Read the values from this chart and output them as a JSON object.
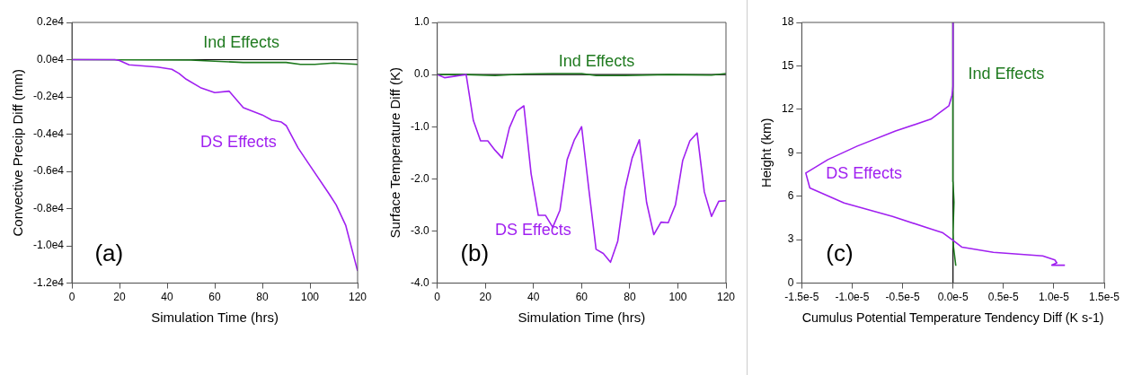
{
  "chart_data": [
    {
      "type": "line",
      "xlabel": "Simulation Time (hrs)",
      "ylabel": "Convective Precip Diff (mm)",
      "marker": "none",
      "xlim": [
        0,
        120
      ],
      "xticks": [
        0,
        20,
        40,
        60,
        80,
        100,
        120
      ],
      "ylim": [
        -12000,
        2000
      ],
      "yticks": [
        {
          "value": -12000,
          "label": "-1.2e4"
        },
        {
          "value": -10000,
          "label": "-1.0e4"
        },
        {
          "value": -8000,
          "label": "-0.8e4"
        },
        {
          "value": -6000,
          "label": "-0.6e4"
        },
        {
          "value": -4000,
          "label": "-0.4e4"
        },
        {
          "value": -2000,
          "label": "-0.2e4"
        },
        {
          "value": 0,
          "label": "0.0e4"
        },
        {
          "value": 2000,
          "label": "0.2e4"
        }
      ],
      "ref_lines": [
        {
          "axis": "y",
          "value": 0,
          "color": "#000000"
        }
      ],
      "annotations": [
        "(a)"
      ],
      "series": [
        {
          "name": "Ind Effects",
          "color": "#1f7a1f",
          "x": [
            0,
            50,
            60,
            72,
            90,
            96,
            102,
            110,
            120
          ],
          "values": [
            0,
            -20,
            -80,
            -150,
            -150,
            -250,
            -250,
            -180,
            -250
          ]
        },
        {
          "name": "DS Effects",
          "color": "#a020f0",
          "x": [
            0,
            18,
            20,
            24,
            30,
            36,
            42,
            45,
            48,
            54,
            60,
            66,
            72,
            80,
            84,
            88,
            90,
            95,
            100,
            108,
            111,
            115,
            120
          ],
          "values": [
            0,
            0,
            -50,
            -280,
            -340,
            -400,
            -520,
            -740,
            -1050,
            -1500,
            -1770,
            -1690,
            -2580,
            -2970,
            -3250,
            -3350,
            -3540,
            -4740,
            -5690,
            -7200,
            -7800,
            -8890,
            -11350
          ]
        }
      ]
    },
    {
      "type": "line",
      "xlabel": "Simulation Time (hrs)",
      "ylabel": "Surface Temperature Diff (K)",
      "marker": "none",
      "xlim": [
        0,
        120
      ],
      "xticks": [
        0,
        20,
        40,
        60,
        80,
        100,
        120
      ],
      "ylim": [
        -4,
        1
      ],
      "yticks": [
        {
          "value": -4,
          "label": "-4.0"
        },
        {
          "value": -3,
          "label": "-3.0"
        },
        {
          "value": -2,
          "label": "-2.0"
        },
        {
          "value": -1,
          "label": "-1.0"
        },
        {
          "value": 0,
          "label": "0.0"
        },
        {
          "value": 1,
          "label": "1.0"
        }
      ],
      "ref_lines": [
        {
          "axis": "y",
          "value": 0,
          "color": "#000000"
        }
      ],
      "annotations": [
        "(b)"
      ],
      "series": [
        {
          "name": "Ind Effects",
          "color": "#1f7a1f",
          "x": [
            0,
            12,
            24,
            36,
            48,
            60,
            66,
            78,
            96,
            114,
            120
          ],
          "values": [
            0,
            0,
            -0.02,
            0.01,
            0.02,
            0.02,
            -0.02,
            -0.02,
            0,
            -0.01,
            0.02
          ]
        },
        {
          "name": "DS Effects",
          "color": "#a020f0",
          "x": [
            0,
            3,
            12,
            15,
            18,
            21,
            24,
            27,
            30,
            33,
            36,
            39,
            42,
            45,
            48,
            51,
            54,
            57,
            60,
            63,
            66,
            69,
            72,
            75,
            78,
            81,
            84,
            87,
            90,
            93,
            96,
            99,
            102,
            105,
            108,
            111,
            114,
            117,
            120
          ],
          "values": [
            0,
            -0.06,
            0,
            -0.88,
            -1.27,
            -1.27,
            -1.45,
            -1.6,
            -1.02,
            -0.7,
            -0.6,
            -1.9,
            -2.7,
            -2.7,
            -2.93,
            -2.6,
            -1.63,
            -1.25,
            -1.0,
            -2.2,
            -3.35,
            -3.43,
            -3.6,
            -3.2,
            -2.2,
            -1.6,
            -1.25,
            -2.45,
            -3.07,
            -2.83,
            -2.84,
            -2.5,
            -1.65,
            -1.27,
            -1.12,
            -2.25,
            -2.72,
            -2.43,
            -2.42
          ]
        }
      ]
    },
    {
      "type": "line",
      "xlabel": "Cumulus Potential Temperature Tendency Diff (K s-1)",
      "ylabel": "Height (km)",
      "marker": "none",
      "xlim": [
        -1.5e-05,
        1.5e-05
      ],
      "xticks": [
        {
          "value": -1.5e-05,
          "label": "-1.5e-5"
        },
        {
          "value": -1e-05,
          "label": "-1.0e-5"
        },
        {
          "value": -5e-06,
          "label": "-0.5e-5"
        },
        {
          "value": 0,
          "label": "0.0e-5"
        },
        {
          "value": 5e-06,
          "label": "0.5e-5"
        },
        {
          "value": 1e-05,
          "label": "1.0e-5"
        },
        {
          "value": 1.5e-05,
          "label": "1.5e-5"
        }
      ],
      "ylim": [
        0,
        18
      ],
      "yticks": [
        0,
        3,
        6,
        9,
        12,
        15,
        18
      ],
      "ref_lines": [
        {
          "axis": "x",
          "value": 0,
          "color": "#000000"
        }
      ],
      "annotations": [
        "(c)"
      ],
      "series": [
        {
          "name": "Ind Effects",
          "color": "#1f7a1f",
          "x": [
            2.8e-07,
            5e-08,
            0,
            1e-07,
            0,
            -5e-08,
            0,
            0
          ],
          "values": [
            1.2,
            2.5,
            3.5,
            5.6,
            7,
            9,
            13,
            18
          ]
        },
        {
          "name": "DS Effects",
          "color": "#a020f0",
          "x": [
            1.11e-05,
            9.8e-06,
            1.03e-05,
            1.01e-05,
            8.9e-06,
            4e-06,
            9e-07,
            0,
            -1e-06,
            -6e-06,
            -1.08e-05,
            -1.42e-05,
            -1.46e-05,
            -1.24e-05,
            -9.5e-06,
            -5.7e-06,
            -2.2e-06,
            -4e-07,
            -1e-07,
            0,
            0
          ],
          "values": [
            1.24,
            1.24,
            1.4,
            1.6,
            1.88,
            2.13,
            2.48,
            2.95,
            3.47,
            4.6,
            5.54,
            6.57,
            7.6,
            8.53,
            9.46,
            10.5,
            11.32,
            12.25,
            12.97,
            13.6,
            18
          ]
        }
      ]
    }
  ]
}
